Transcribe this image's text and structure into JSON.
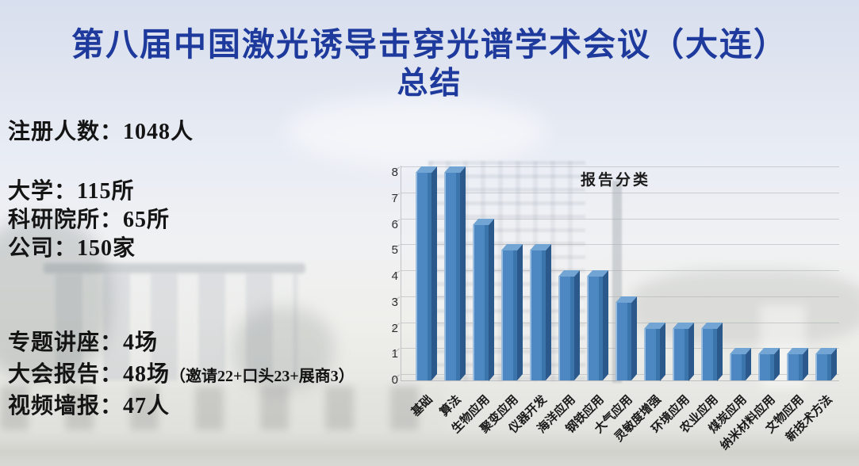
{
  "slide": {
    "title_line1": "第八届中国激光诱导击穿光谱学术会议（大连）",
    "title_line2": "总结"
  },
  "stats": {
    "registration": "注册人数：1048人",
    "org_lines": [
      "大学：115所",
      "科研院所：65所",
      "公司：150家"
    ],
    "event_lines": [
      {
        "text": "专题讲座：4场",
        "note": ""
      },
      {
        "text": "大会报告：48场",
        "note": "（邀请22+口头23+展商3）"
      },
      {
        "text": "视频墙报：47人",
        "note": ""
      }
    ]
  },
  "colors": {
    "title_blue": "#1d3a9c",
    "bar_front": "#4d88c2",
    "bar_side": "#2b598c",
    "bar_top": "#72a5d4"
  },
  "chart_data": {
    "type": "bar",
    "style": "3d-column",
    "title": "报告分类",
    "categories": [
      "基础",
      "算法",
      "生物应用",
      "聚变应用",
      "仪器开发",
      "海洋应用",
      "钢铁应用",
      "大气应用",
      "灵敏度增强",
      "环境应用",
      "农业应用",
      "煤炭应用",
      "纳米材料应用",
      "文物应用",
      "新技术方法"
    ],
    "values": [
      8,
      8,
      6,
      5,
      5,
      4,
      4,
      3,
      2,
      2,
      2,
      1,
      1,
      1,
      1
    ],
    "xlabel": "",
    "ylabel": "",
    "ylim": [
      0,
      8
    ],
    "yticks": [
      0,
      1,
      2,
      3,
      4,
      5,
      6,
      7,
      8
    ],
    "grid": true,
    "legend": false
  }
}
